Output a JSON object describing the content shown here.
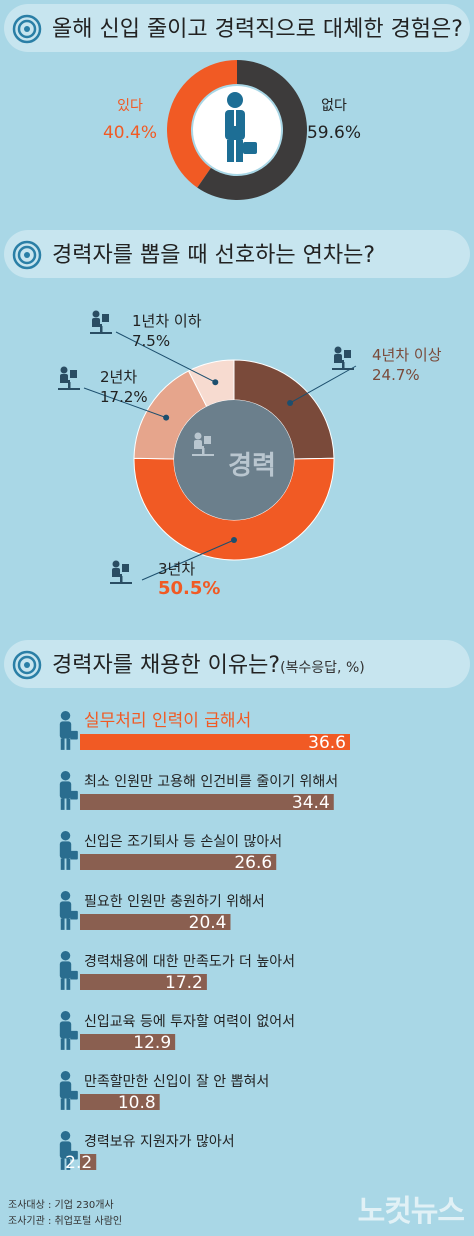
{
  "sections": {
    "q1": {
      "title": "올해 신입 줄이고 경력직으로 대체한 경험은?"
    },
    "q2": {
      "title": "경력자를 뽑을 때 선호하는 연차는?"
    },
    "q3": {
      "title": "경력자를 채용한 이유는?",
      "note": "(복수응답, %)"
    }
  },
  "center_label": "경력",
  "footer": {
    "survey_target": "조사대상 : 기업 230개사",
    "survey_org": "조사기관 : 취업포털 사람인"
  },
  "watermark": "노컷뉴스",
  "colors": {
    "orange": "#f15a24",
    "dark": "#3d3b3b",
    "brown": "#7a4a3a",
    "salmon": "#e6a58c",
    "pale": "#f7dbd0",
    "bar_brown": "#8a5f50",
    "bar_orange": "#f15a24"
  },
  "chart_data": [
    {
      "type": "pie",
      "title": "올해 신입 줄이고 경력직으로 대체한 경험은?",
      "categories": [
        "있다",
        "없다"
      ],
      "values": [
        40.4,
        59.6
      ],
      "value_labels": [
        "40.4%",
        "59.6%"
      ]
    },
    {
      "type": "pie",
      "title": "경력자를 뽑을 때 선호하는 연차는?",
      "categories": [
        "4년차 이상",
        "3년차",
        "2년차",
        "1년차 이하"
      ],
      "values": [
        24.7,
        50.5,
        17.2,
        7.5
      ],
      "value_labels": [
        "24.7%",
        "50.5%",
        "17.2%",
        "7.5%"
      ]
    },
    {
      "type": "bar",
      "title": "경력자를 채용한 이유는?",
      "categories": [
        "실무처리 인력이 급해서",
        "최소 인원만 고용해 인건비를 줄이기 위해서",
        "신입은 조기퇴사 등 손실이 많아서",
        "필요한 인원만 충원하기 위해서",
        "경력채용에 대한 만족도가 더 높아서",
        "신입교육 등에 투자할 여력이 없어서",
        "만족할만한 신입이 잘 안 뽑혀서",
        "경력보유 지원자가 많아서"
      ],
      "values": [
        36.6,
        34.4,
        26.6,
        20.4,
        17.2,
        12.9,
        10.8,
        2.2
      ],
      "value_labels": [
        "36.6",
        "34.4",
        "26.6",
        "20.4",
        "17.2",
        "12.9",
        "10.8",
        "2.2"
      ],
      "ylim": [
        0,
        36.6
      ]
    }
  ]
}
